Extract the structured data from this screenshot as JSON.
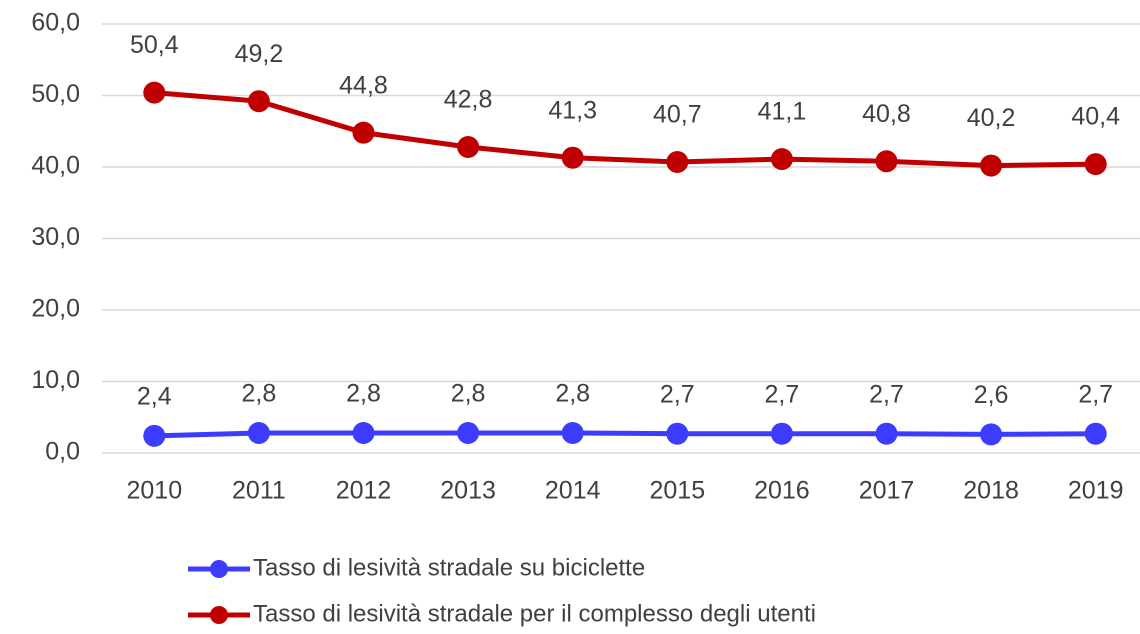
{
  "chart_data": {
    "type": "line",
    "categories": [
      "2010",
      "2011",
      "2012",
      "2013",
      "2014",
      "2015",
      "2016",
      "2017",
      "2018",
      "2019"
    ],
    "series": [
      {
        "name": "Tasso di lesività stradale su biciclette",
        "color": "#3c3cff",
        "values": [
          2.4,
          2.8,
          2.8,
          2.8,
          2.8,
          2.7,
          2.7,
          2.7,
          2.6,
          2.7
        ],
        "value_labels": [
          "2,4",
          "2,8",
          "2,8",
          "2,8",
          "2,8",
          "2,7",
          "2,7",
          "2,7",
          "2,6",
          "2,7"
        ]
      },
      {
        "name": "Tasso di lesività stradale per il complesso degli utenti",
        "color": "#c00000",
        "values": [
          50.4,
          49.2,
          44.8,
          42.8,
          41.3,
          40.7,
          41.1,
          40.8,
          40.2,
          40.4
        ],
        "value_labels": [
          "50,4",
          "49,2",
          "44,8",
          "42,8",
          "41,3",
          "40,7",
          "41,1",
          "40,8",
          "40,2",
          "40,4"
        ]
      }
    ],
    "ylim": [
      0,
      60
    ],
    "yticks": [
      {
        "value": 0,
        "label": "0,0"
      },
      {
        "value": 10,
        "label": "10,0"
      },
      {
        "value": 20,
        "label": "20,0"
      },
      {
        "value": 30,
        "label": "30,0"
      },
      {
        "value": 40,
        "label": "40,0"
      },
      {
        "value": 50,
        "label": "50,0"
      },
      {
        "value": 60,
        "label": "60,0"
      }
    ],
    "grid": true
  }
}
